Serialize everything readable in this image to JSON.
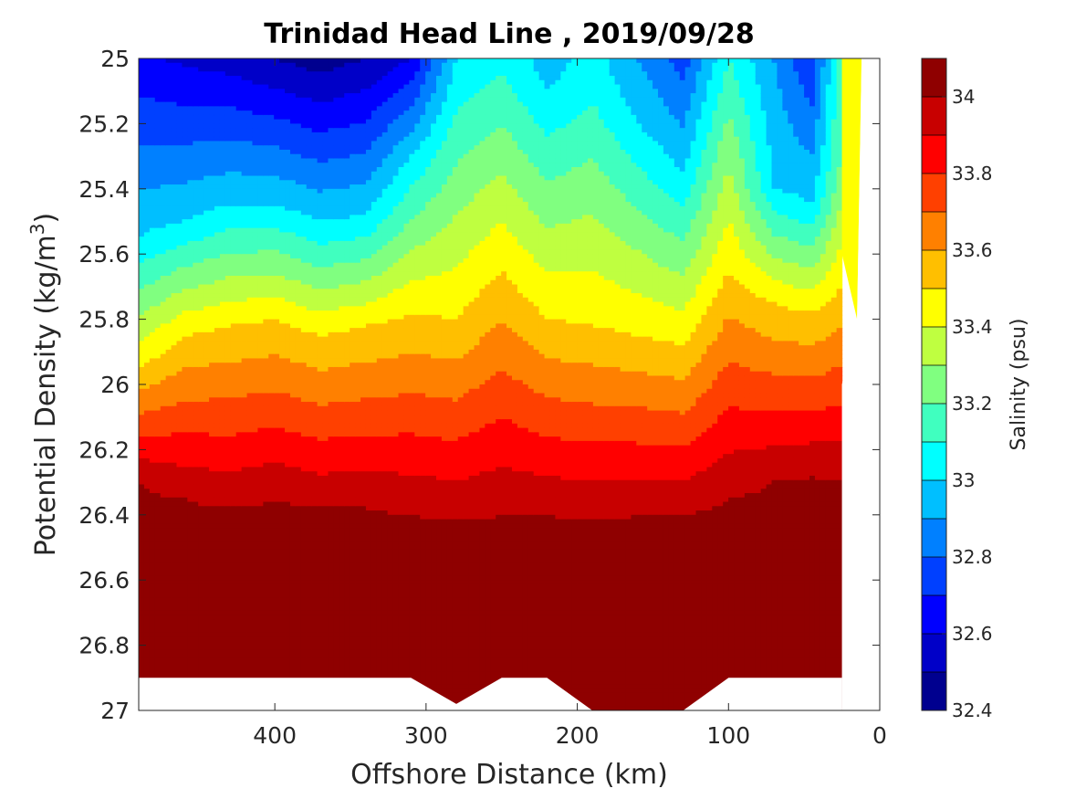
{
  "chart_data": {
    "type": "heatmap",
    "title": "Trinidad Head Line , 2019/09/28",
    "xlabel": "Offshore Distance (km)",
    "ylabel_main": "Potential Density (kg/m",
    "ylabel_sup": "3",
    "ylabel_close": ")",
    "colorbar_label": "Salinity (psu)",
    "xlim": [
      490,
      0
    ],
    "ylim": [
      25,
      27
    ],
    "x_ticks": [
      "400",
      "300",
      "200",
      "100",
      "0"
    ],
    "x_tick_values": [
      400,
      300,
      200,
      100,
      0
    ],
    "y_ticks": [
      "25",
      "25.2",
      "25.4",
      "25.6",
      "25.8",
      "26",
      "26.2",
      "26.4",
      "26.6",
      "26.8",
      "27"
    ],
    "y_tick_values": [
      25,
      25.2,
      25.4,
      25.6,
      25.8,
      26,
      26.2,
      26.4,
      26.6,
      26.8,
      27
    ],
    "colorbar_range": [
      32.4,
      34.1
    ],
    "colorbar_ticks": [
      "32.4",
      "32.6",
      "32.8",
      "33",
      "33.2",
      "33.4",
      "33.6",
      "33.8",
      "34"
    ],
    "colorbar_tick_values": [
      32.4,
      32.6,
      32.8,
      33,
      33.2,
      33.4,
      33.6,
      33.8,
      34
    ],
    "contour_levels": [
      32.4,
      32.5,
      32.6,
      32.7,
      32.8,
      32.9,
      33.0,
      33.1,
      33.2,
      33.3,
      33.4,
      33.5,
      33.6,
      33.7,
      33.8,
      33.9,
      34.0
    ],
    "level_colors": [
      "#00008f",
      "#0000c8",
      "#0000ff",
      "#0040ff",
      "#0080ff",
      "#00bfff",
      "#00ffff",
      "#40ffbf",
      "#80ff80",
      "#bfff40",
      "#ffff00",
      "#ffbf00",
      "#ff8000",
      "#ff4000",
      "#ff0000",
      "#c80000",
      "#8f0000"
    ],
    "stations_km": [
      490,
      460,
      430,
      400,
      370,
      340,
      310,
      280,
      250,
      220,
      190,
      160,
      130,
      100,
      70,
      45,
      25
    ],
    "section": {
      "x_km": [
        490,
        460,
        430,
        400,
        370,
        340,
        310,
        280,
        250,
        220,
        190,
        160,
        130,
        100,
        70,
        45,
        25
      ],
      "shallowest_density": 25.0,
      "salinity_at_25_0": [
        32.62,
        32.58,
        32.55,
        32.5,
        32.45,
        32.5,
        32.6,
        33.0,
        33.1,
        32.95,
        33.05,
        32.9,
        32.75,
        33.1,
        32.9,
        32.7,
        33.2
      ],
      "isohaline_density_33_0": [
        25.55,
        25.5,
        25.45,
        25.45,
        25.5,
        25.48,
        25.3,
        25.0,
        25.05,
        25.1,
        25.05,
        25.2,
        25.35,
        25.0,
        25.4,
        25.45,
        25.3
      ],
      "isohaline_density_33_5": [
        25.95,
        25.85,
        25.82,
        25.8,
        25.85,
        25.82,
        25.78,
        25.8,
        25.65,
        25.8,
        25.82,
        25.85,
        25.88,
        25.65,
        25.75,
        25.78,
        25.7
      ],
      "isohaline_density_34_0": [
        26.3,
        26.35,
        26.38,
        26.35,
        26.38,
        26.38,
        26.4,
        26.42,
        26.4,
        26.4,
        26.42,
        26.4,
        26.4,
        26.35,
        26.3,
        26.28,
        26.3
      ],
      "deepest_density": [
        26.9,
        26.9,
        26.9,
        26.9,
        26.9,
        26.9,
        26.9,
        26.98,
        26.9,
        26.9,
        27.0,
        27.0,
        27.0,
        26.9,
        26.9,
        26.9,
        26.9
      ]
    }
  }
}
